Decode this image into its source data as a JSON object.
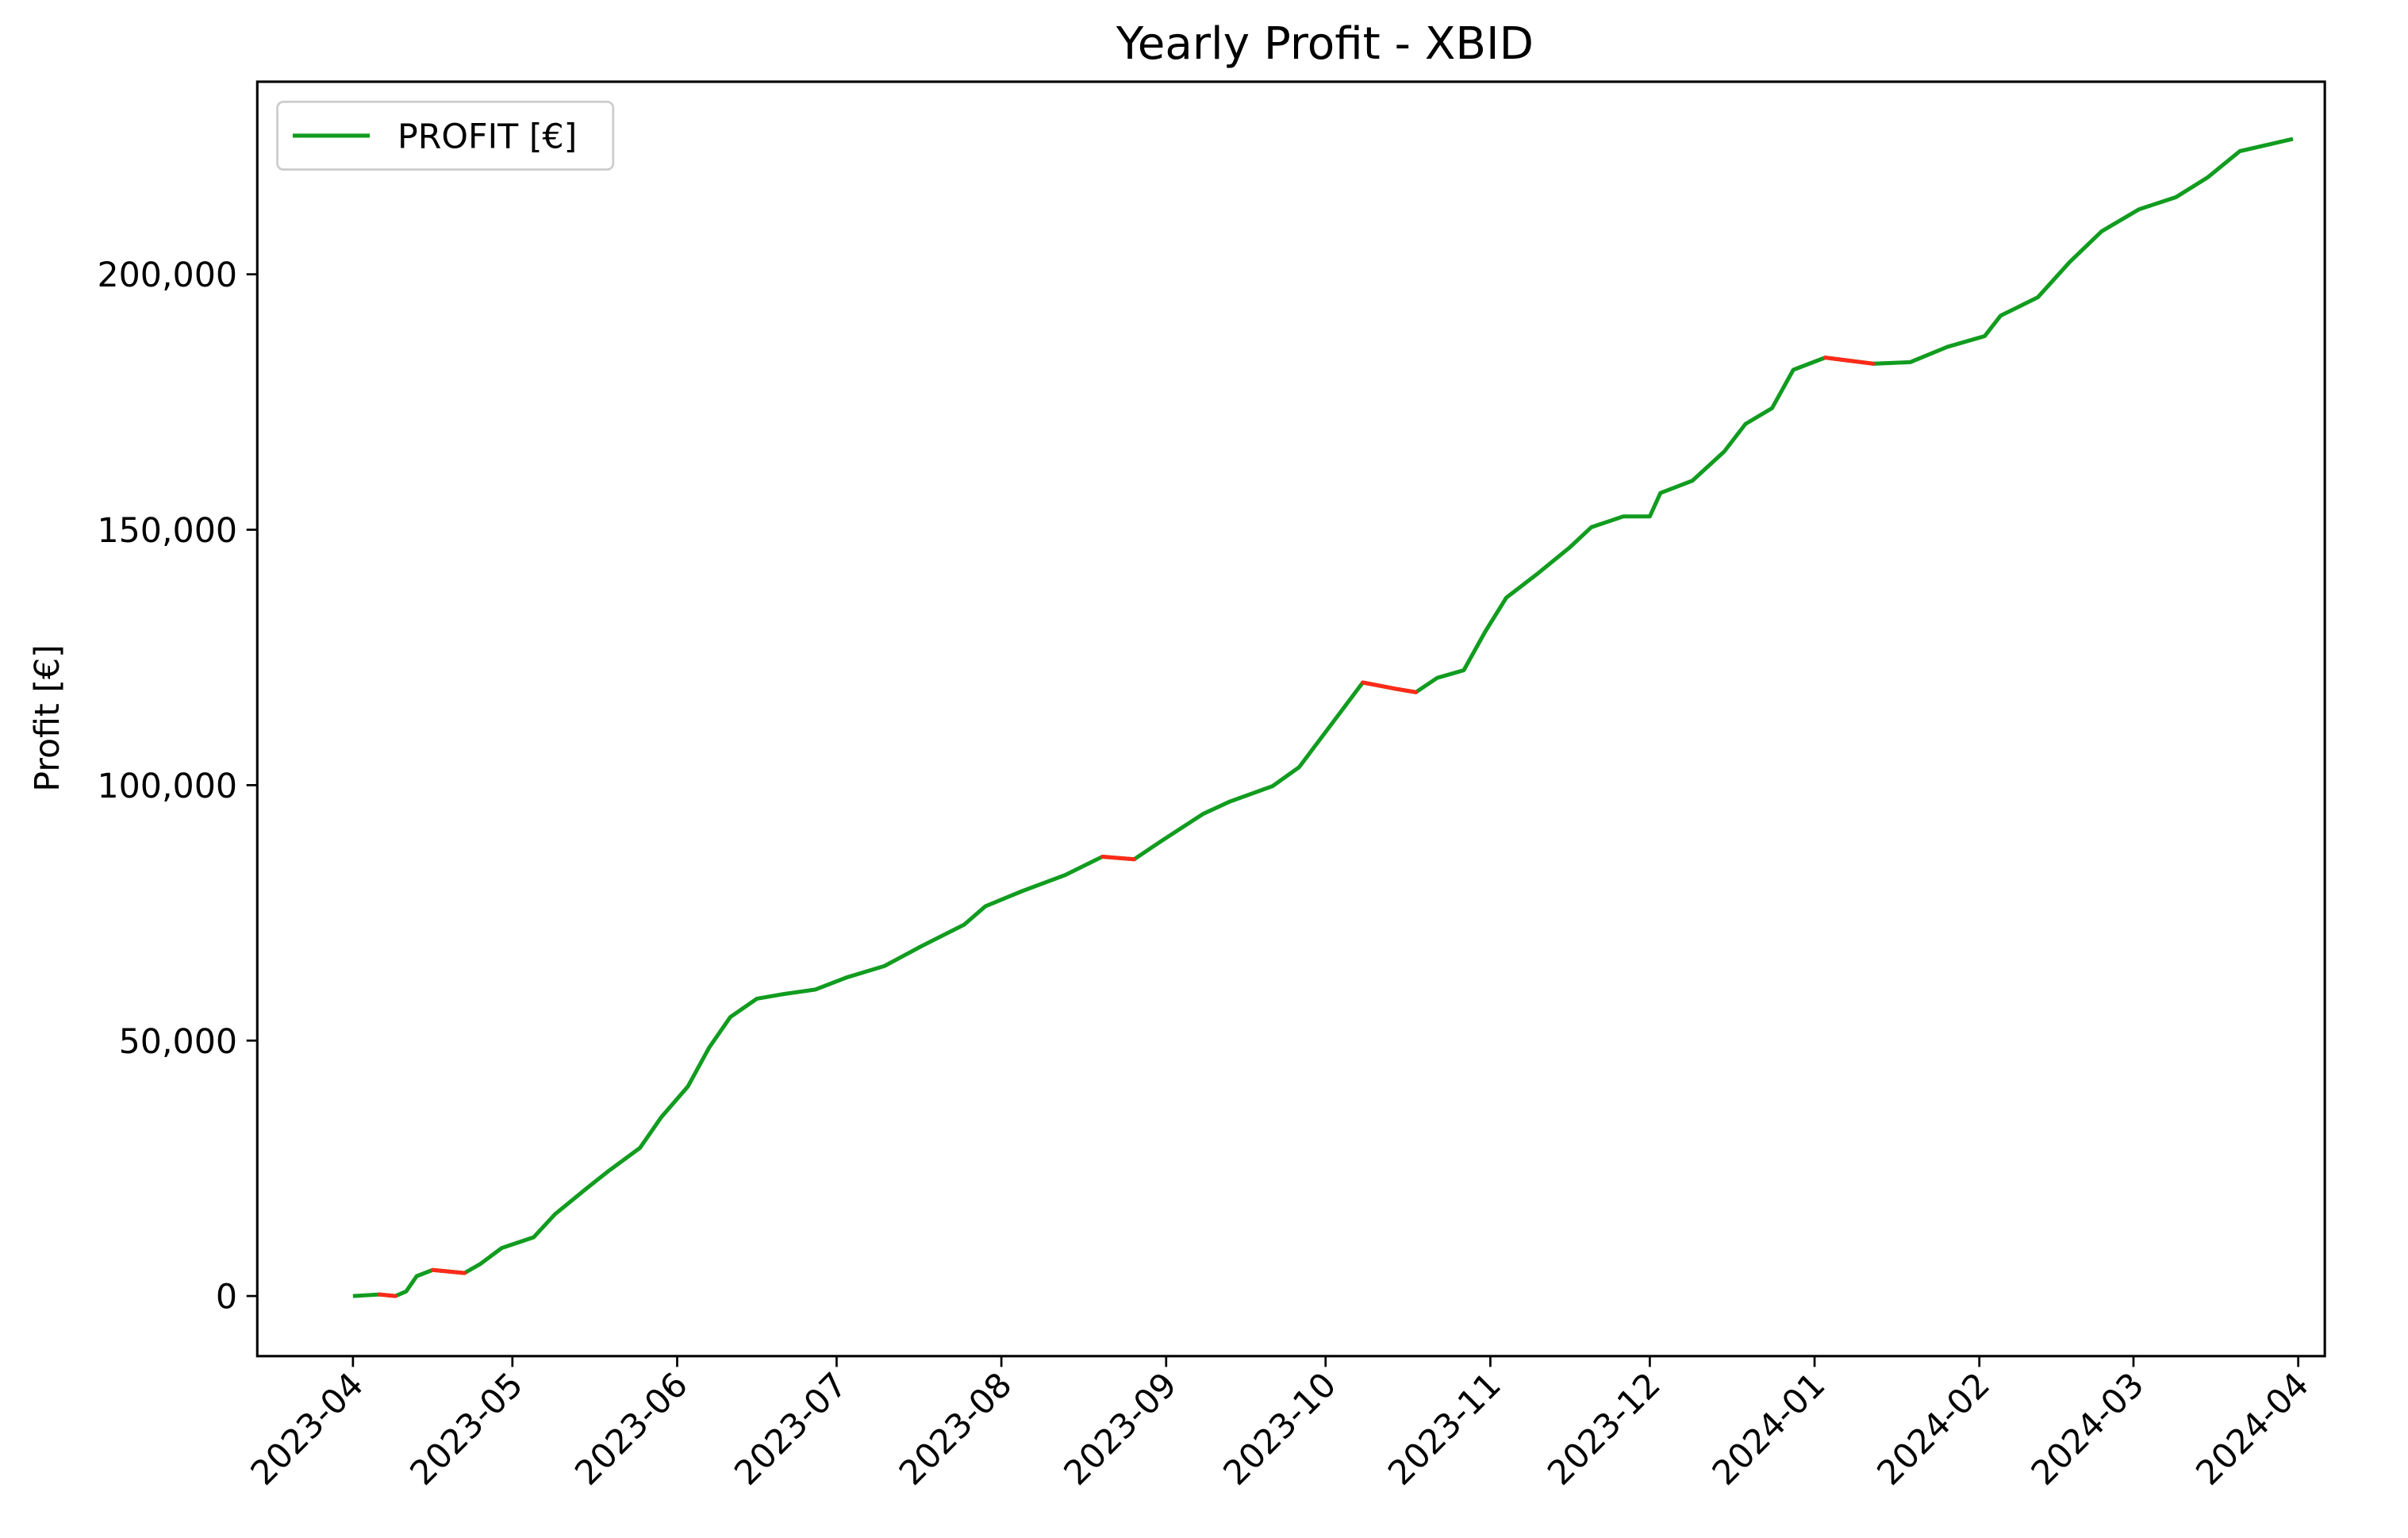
{
  "chart_data": {
    "type": "line",
    "title": "Yearly Profit - XBID",
    "y_label": "Profit [€]",
    "x": [
      0,
      5,
      8,
      10,
      12,
      15,
      21,
      24,
      28,
      34,
      38,
      44,
      48,
      54,
      58,
      63,
      67,
      71,
      76,
      81,
      87,
      93,
      100,
      107,
      115,
      119,
      126,
      134,
      141,
      147,
      152,
      160,
      165,
      173,
      178,
      183,
      190,
      196,
      200,
      204,
      209,
      213,
      217,
      223,
      229,
      233,
      239,
      244,
      246,
      252,
      258,
      262,
      267,
      271,
      277,
      286,
      293,
      300,
      307,
      310,
      317,
      323,
      329,
      336,
      343,
      349,
      355,
      365
    ],
    "series": [
      {
        "name": "PROFIT [€]",
        "color": "#119c1f",
        "decrease_color": "#ff2a1a",
        "values": [
          0,
          300,
          0,
          900,
          3900,
          5100,
          4500,
          6300,
          9400,
          11500,
          16000,
          21100,
          24400,
          29000,
          35000,
          41000,
          48600,
          54600,
          58200,
          59100,
          60000,
          62400,
          64600,
          68500,
          72700,
          76300,
          79300,
          82400,
          86000,
          85500,
          89000,
          94400,
          96800,
          99800,
          103500,
          110400,
          120100,
          118900,
          118200,
          121000,
          122500,
          130000,
          136700,
          141500,
          146600,
          150500,
          152600,
          152600,
          157200,
          159600,
          165300,
          170700,
          173800,
          181300,
          183700,
          182500,
          182800,
          185800,
          187900,
          191900,
          195500,
          202400,
          208400,
          212700,
          215100,
          219000,
          224100,
          226500
        ]
      }
    ],
    "xlim": [
      -18,
      371
    ],
    "xticks": [
      {
        "value": 0,
        "label": "2023-04"
      },
      {
        "value": 30,
        "label": "2023-05"
      },
      {
        "value": 61,
        "label": "2023-06"
      },
      {
        "value": 91,
        "label": "2023-07"
      },
      {
        "value": 122,
        "label": "2023-08"
      },
      {
        "value": 153,
        "label": "2023-09"
      },
      {
        "value": 183,
        "label": "2023-10"
      },
      {
        "value": 214,
        "label": "2023-11"
      },
      {
        "value": 244,
        "label": "2023-12"
      },
      {
        "value": 275,
        "label": "2024-01"
      },
      {
        "value": 306,
        "label": "2024-02"
      },
      {
        "value": 335,
        "label": "2024-03"
      },
      {
        "value": 366,
        "label": "2024-04"
      }
    ],
    "ylim": [
      -11765,
      237700
    ],
    "yticks": [
      0,
      {
        "value": 50000,
        "label": "50,000"
      },
      {
        "value": 100000,
        "label": "100,000"
      },
      {
        "value": 150000,
        "label": "150,000"
      },
      {
        "value": 200000,
        "label": "200,000"
      }
    ],
    "grid": false,
    "legend": "upper left"
  }
}
